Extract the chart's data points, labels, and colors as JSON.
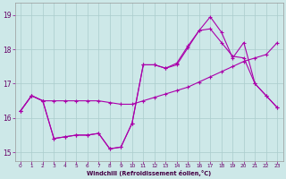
{
  "xlabel": "Windchill (Refroidissement éolien,°C)",
  "xlim": [
    -0.5,
    23.5
  ],
  "ylim": [
    14.75,
    19.35
  ],
  "yticks": [
    15,
    16,
    17,
    18,
    19
  ],
  "xticks": [
    0,
    1,
    2,
    3,
    4,
    5,
    6,
    7,
    8,
    9,
    10,
    11,
    12,
    13,
    14,
    15,
    16,
    17,
    18,
    19,
    20,
    21,
    22,
    23
  ],
  "background_color": "#cde8e8",
  "line_color": "#aa00aa",
  "grid_color": "#aacccc",
  "line1_y": [
    16.2,
    16.65,
    16.5,
    16.5,
    16.5,
    16.5,
    16.5,
    16.5,
    16.45,
    16.4,
    16.4,
    16.5,
    16.6,
    16.7,
    16.8,
    16.9,
    17.05,
    17.2,
    17.35,
    17.5,
    17.65,
    17.75,
    17.85,
    18.2
  ],
  "line2_y": [
    16.2,
    16.65,
    16.5,
    15.4,
    15.45,
    15.5,
    15.5,
    15.55,
    15.1,
    15.15,
    15.85,
    17.55,
    17.55,
    17.45,
    17.55,
    18.05,
    18.55,
    18.6,
    18.2,
    17.8,
    17.75,
    17.0,
    16.65,
    16.3
  ],
  "line3_y": [
    16.2,
    16.65,
    16.5,
    15.4,
    15.45,
    15.5,
    15.5,
    15.55,
    15.1,
    15.15,
    15.85,
    17.55,
    17.55,
    17.45,
    17.6,
    18.1,
    18.55,
    18.95,
    18.5,
    17.75,
    18.2,
    17.0,
    16.65,
    16.3
  ]
}
